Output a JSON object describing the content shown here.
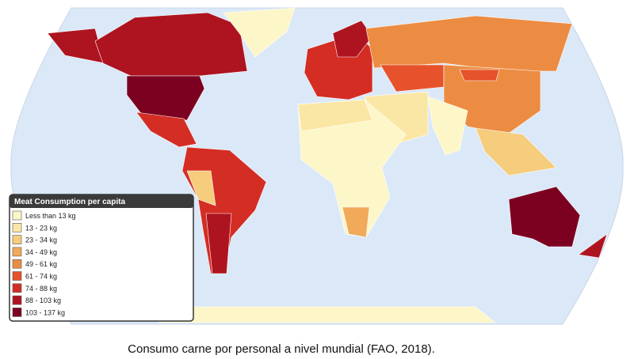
{
  "legend": {
    "title": "Meat Consumption per capita",
    "items": [
      {
        "label": "Less than 13 kg",
        "color": "#fdf6c8"
      },
      {
        "label": "13 - 23 kg",
        "color": "#fbe7a5"
      },
      {
        "label": "23 - 34 kg",
        "color": "#f6cc7d"
      },
      {
        "label": "34 - 49 kg",
        "color": "#f1a95a"
      },
      {
        "label": "49 - 61 kg",
        "color": "#ec8c42"
      },
      {
        "label": "61 - 74 kg",
        "color": "#e6522c"
      },
      {
        "label": "74 - 88 kg",
        "color": "#d42d24"
      },
      {
        "label": "88 - 103 kg",
        "color": "#ae1420"
      },
      {
        "label": "103 - 137 kg",
        "color": "#7c0020"
      }
    ]
  },
  "caption": "Consumo carne por personal a nivel mundial (FAO, 2018)."
}
